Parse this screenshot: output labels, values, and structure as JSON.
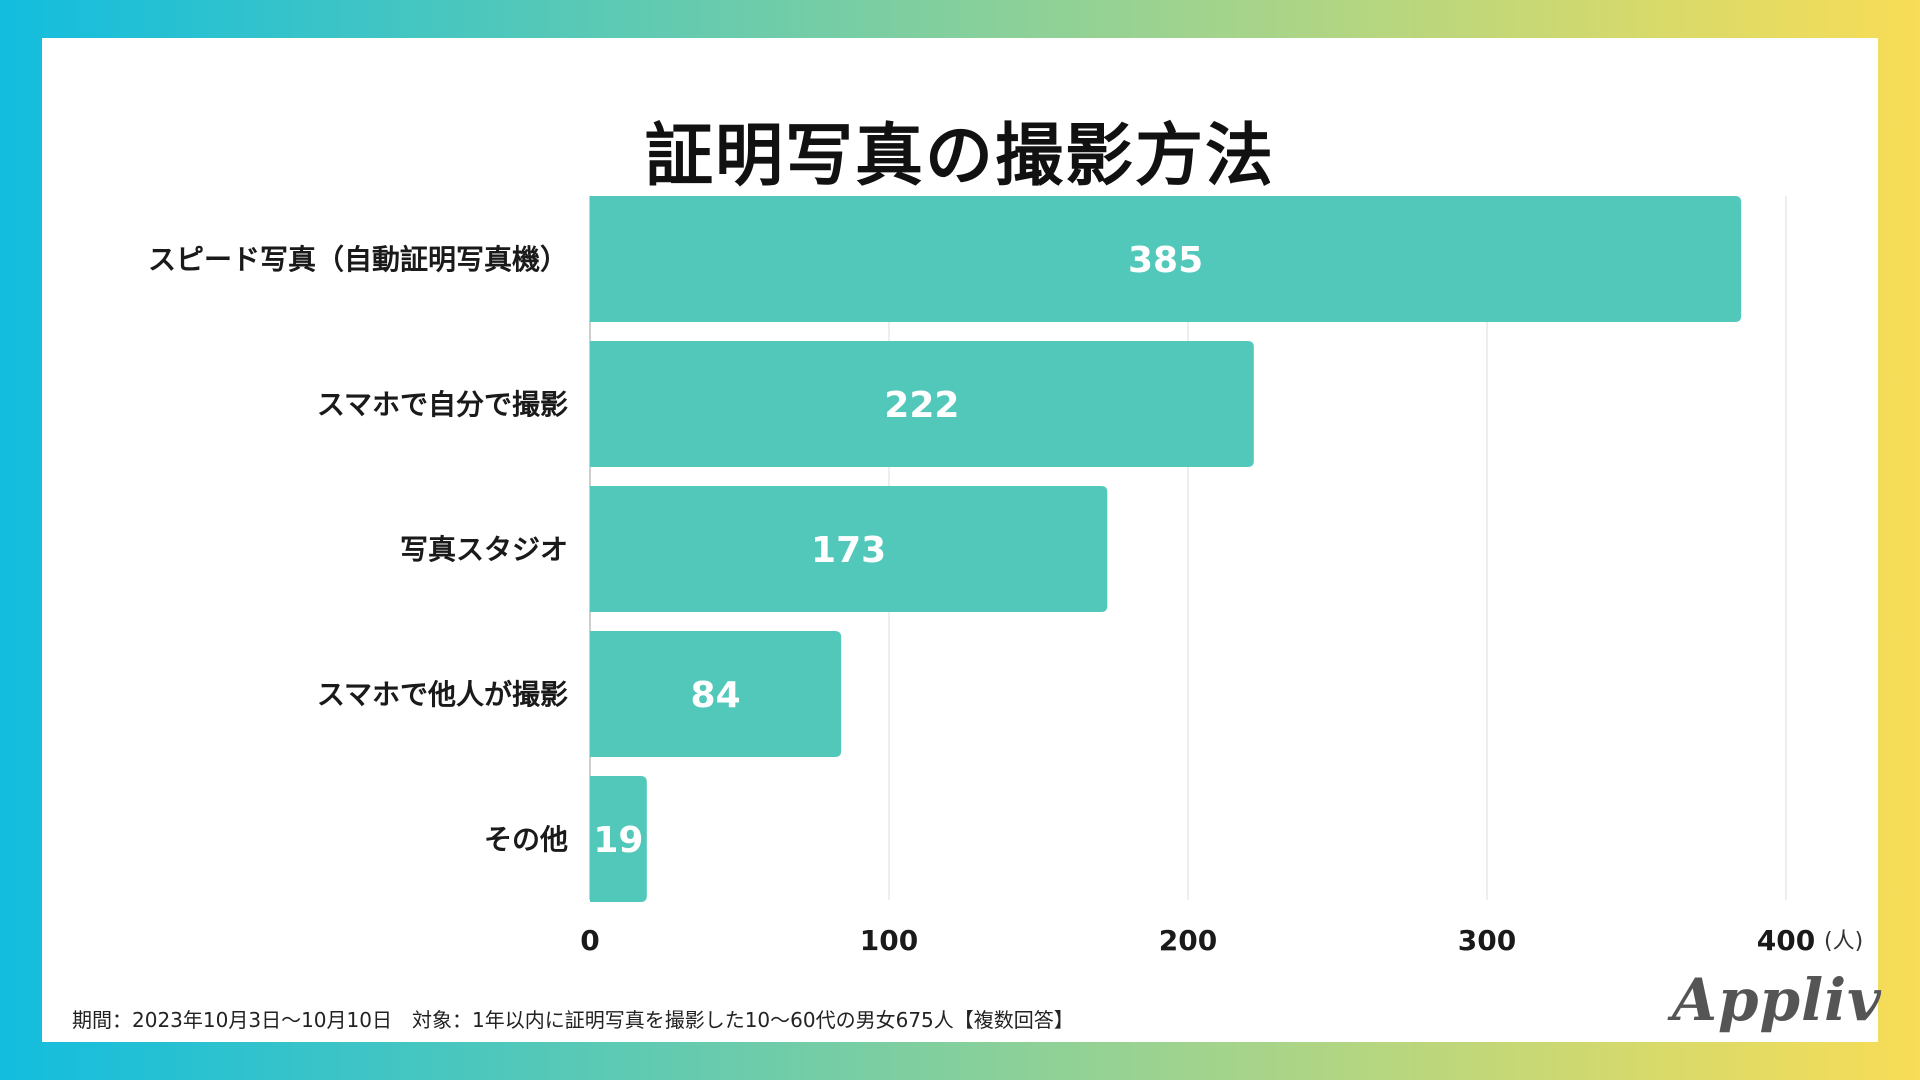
{
  "chart_data": {
    "type": "bar",
    "orientation": "horizontal",
    "title": "証明写真の撮影方法",
    "categories": [
      "スピード写真（自動証明写真機）",
      "スマホで自分で撮影",
      "写真スタジオ",
      "スマホで他人が撮影",
      "その他"
    ],
    "values": [
      385,
      222,
      173,
      84,
      19
    ],
    "xlim": [
      0,
      400
    ],
    "xticks": [
      0,
      100,
      200,
      300,
      400
    ],
    "x_unit": "(人)",
    "grid": true,
    "bar_color": "#52c8ba",
    "value_labels_inside": true
  },
  "footnote": "期間：2023年10月3日〜10月10日　対象：1年以内に証明写真を撮影した10〜60代の男女675人【複数回答】",
  "logo_text": "Appliv",
  "colors": {
    "bar": "#52c8ba",
    "background_gradient": [
      "#12bddf",
      "#f8dd56"
    ]
  }
}
